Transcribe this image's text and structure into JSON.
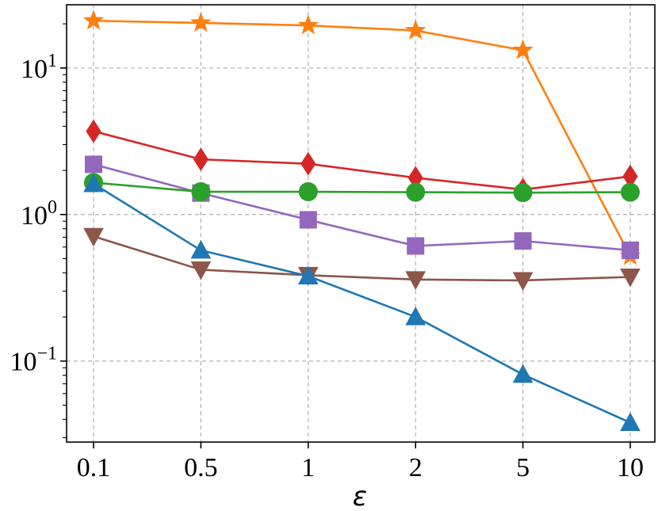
{
  "chart_data": {
    "type": "line",
    "title": "",
    "xlabel": "ε",
    "ylabel": "",
    "yscale": "log",
    "ylim": [
      0.028,
      27
    ],
    "grid": true,
    "categories": [
      "0.1",
      "0.5",
      "1",
      "2",
      "5",
      "10"
    ],
    "y_ticks": [
      {
        "value": 0.1,
        "base": "10",
        "exp": "−1"
      },
      {
        "value": 1,
        "base": "10",
        "exp": "0"
      },
      {
        "value": 10,
        "base": "10",
        "exp": "1"
      }
    ],
    "series": [
      {
        "name": "series-orange-star",
        "color": "#ff7f0e",
        "marker": "star",
        "values": [
          21,
          20.3,
          19.5,
          18,
          13.2,
          0.52
        ]
      },
      {
        "name": "series-red-diamond",
        "color": "#d62728",
        "marker": "diamond",
        "values": [
          3.7,
          2.38,
          2.22,
          1.78,
          1.48,
          1.82
        ]
      },
      {
        "name": "series-purple-square",
        "color": "#9467bd",
        "marker": "square",
        "values": [
          2.2,
          1.4,
          0.92,
          0.61,
          0.66,
          0.57
        ]
      },
      {
        "name": "series-green-circle",
        "color": "#2ca02c",
        "marker": "circle",
        "values": [
          1.65,
          1.43,
          1.43,
          1.42,
          1.41,
          1.42
        ]
      },
      {
        "name": "series-brown-triangle-down",
        "color": "#8c564b",
        "marker": "triangle-down",
        "values": [
          0.71,
          0.42,
          0.385,
          0.36,
          0.355,
          0.375
        ]
      },
      {
        "name": "series-blue-triangle-up",
        "color": "#1f77b4",
        "marker": "triangle-up",
        "values": [
          1.62,
          0.57,
          0.38,
          0.2,
          0.081,
          0.038
        ]
      }
    ]
  }
}
